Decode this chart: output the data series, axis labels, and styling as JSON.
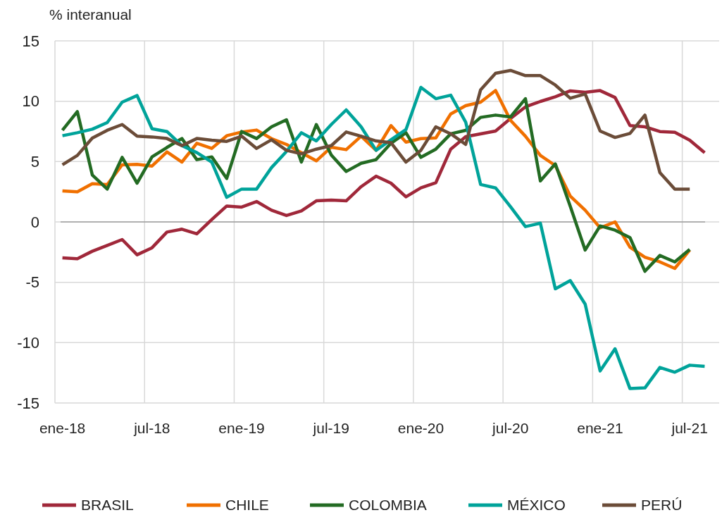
{
  "chart_data": {
    "type": "line",
    "ylabel": "% interanual",
    "categories": [
      "ene-18",
      null,
      null,
      null,
      null,
      null,
      "jul-18",
      null,
      null,
      null,
      null,
      null,
      "ene-19",
      null,
      null,
      null,
      null,
      null,
      "jul-19",
      null,
      null,
      null,
      null,
      null,
      "ene-20",
      null,
      null,
      null,
      null,
      null,
      "jul-20",
      null,
      null,
      null,
      null,
      null,
      "ene-21",
      null,
      null,
      null,
      null,
      null,
      "jul-21",
      null
    ],
    "series": [
      {
        "name": "BRASIL",
        "color": "#a0283a",
        "values": [
          -2.98,
          -3.05,
          -2.43,
          -1.95,
          -1.46,
          -2.72,
          -2.14,
          -0.84,
          -0.6,
          -0.99,
          0.19,
          1.32,
          1.23,
          1.69,
          0.97,
          0.53,
          0.91,
          1.75,
          1.81,
          1.75,
          2.92,
          3.79,
          3.21,
          2.08,
          2.82,
          3.25,
          6.03,
          7.06,
          7.3,
          7.53,
          8.56,
          9.53,
          9.98,
          10.37,
          10.86,
          10.74,
          10.88,
          10.31,
          7.98,
          7.88,
          7.49,
          7.43,
          6.77,
          5.74
        ]
      },
      {
        "name": "CHILE",
        "color": "#f07000",
        "values": [
          2.57,
          2.49,
          3.17,
          3.09,
          4.73,
          4.77,
          4.63,
          5.8,
          4.96,
          6.52,
          6.09,
          7.14,
          7.45,
          7.61,
          6.9,
          6.42,
          5.74,
          5.06,
          6.19,
          5.99,
          7.1,
          5.93,
          7.98,
          6.61,
          6.9,
          6.96,
          8.95,
          9.63,
          9.92,
          10.89,
          8.42,
          7.1,
          5.51,
          4.67,
          2.14,
          0.97,
          -0.49,
          0,
          -2.1,
          -2.92,
          -3.31,
          -3.85,
          -2.33,
          null
        ]
      },
      {
        "name": "COLOMBIA",
        "color": "#236b23",
        "values": [
          7.59,
          9.14,
          3.89,
          2.72,
          5.35,
          3.21,
          5.39,
          6.17,
          6.91,
          5.16,
          5.39,
          3.6,
          7.49,
          6.91,
          7.88,
          8.46,
          4.96,
          8.07,
          5.54,
          4.18,
          4.86,
          5.16,
          6.52,
          7.39,
          5.35,
          6.03,
          7.3,
          7.59,
          8.66,
          8.85,
          8.7,
          10.21,
          3.4,
          4.81,
          1.3,
          -2.33,
          -0.33,
          -0.68,
          -1.3,
          -4.09,
          -2.78,
          -3.31,
          -2.28,
          null
        ]
      },
      {
        "name": "MÉXICO",
        "color": "#00a39a",
        "values": [
          7.14,
          7.39,
          7.68,
          8.23,
          9.92,
          10.47,
          7.72,
          7.49,
          6.32,
          5.74,
          4.96,
          2.04,
          2.72,
          2.72,
          4.5,
          5.84,
          7.39,
          6.71,
          8.07,
          9.28,
          7.88,
          5.93,
          6.81,
          7.65,
          11.15,
          10.21,
          10.5,
          8.27,
          3.1,
          2.82,
          1.26,
          -0.39,
          -0.1,
          -5.54,
          -4.86,
          -6.81,
          -12.35,
          -10.51,
          -13.81,
          -13.75,
          -12.06,
          -12.45,
          -11.87,
          -11.96
        ]
      },
      {
        "name": "PERÚ",
        "color": "#6b4c38",
        "values": [
          4.73,
          5.51,
          6.95,
          7.59,
          8.07,
          7.1,
          7.04,
          6.91,
          6.32,
          6.91,
          6.77,
          6.67,
          7.1,
          6.09,
          6.81,
          5.93,
          5.64,
          6.03,
          6.32,
          7.45,
          7.1,
          6.71,
          6.56,
          4.96,
          5.93,
          7.88,
          7.3,
          6.42,
          10.95,
          12.32,
          12.55,
          12.12,
          12.12,
          11.34,
          10.25,
          10.6,
          7.53,
          7.0,
          7.33,
          8.85,
          4.09,
          2.72,
          2.72,
          null
        ]
      }
    ],
    "ylim": [
      -15,
      15
    ],
    "yticks": [
      -15,
      -10,
      -5,
      0,
      5,
      10,
      15
    ],
    "grid": true,
    "legend": "bottom",
    "line_style": "solid",
    "marker": "none"
  }
}
